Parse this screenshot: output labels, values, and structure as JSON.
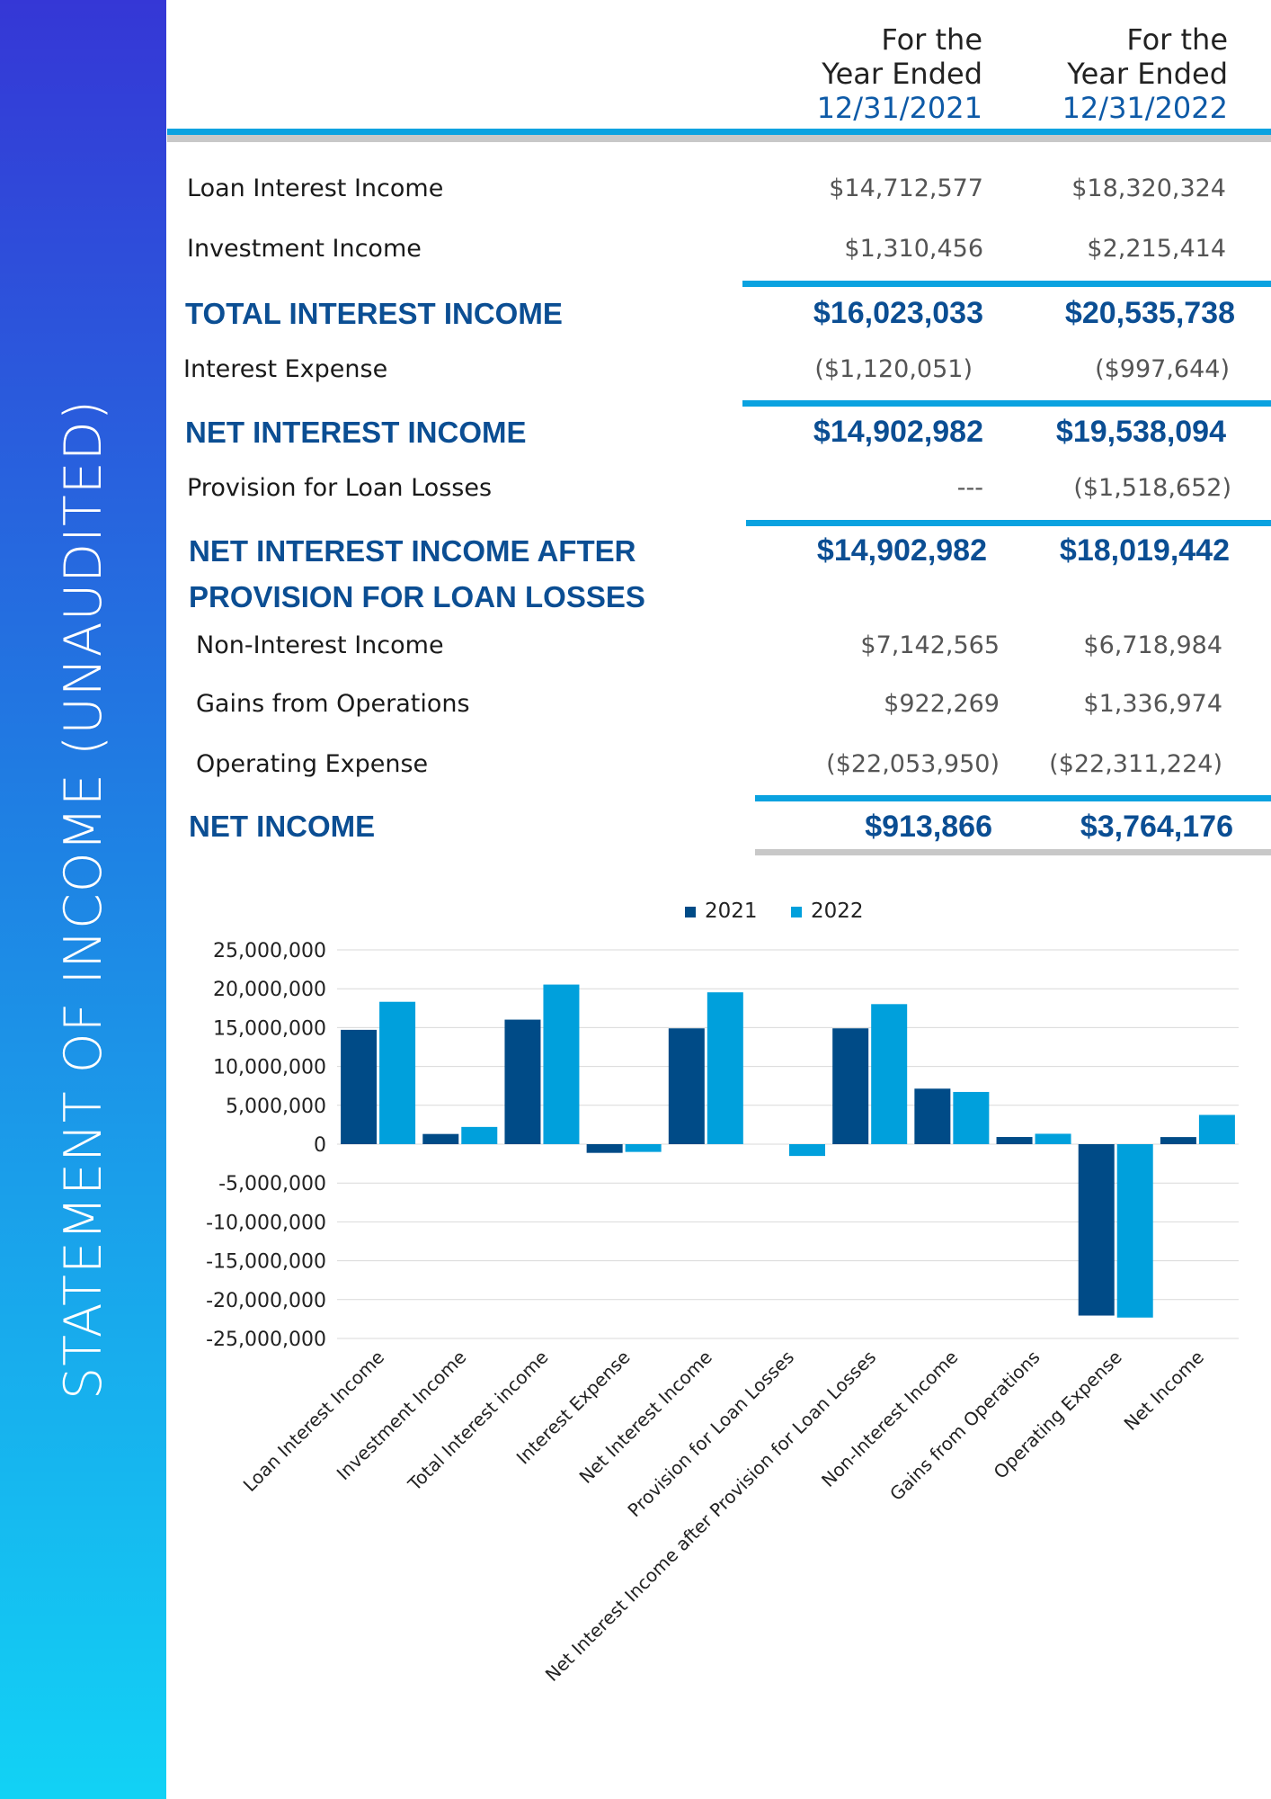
{
  "sidebar": {
    "title": "STATEMENT OF INCOME (UNAUDITED)"
  },
  "columns": [
    {
      "line1": "For the",
      "line2": "Year Ended",
      "date": "12/31/2021"
    },
    {
      "line1": "For the",
      "line2": "Year Ended",
      "date": "12/31/2022"
    }
  ],
  "rows": {
    "loan_interest_income": {
      "label": "Loan Interest Income",
      "v2021": "$14,712,577",
      "v2022": "$18,320,324"
    },
    "investment_income": {
      "label": "Investment Income",
      "v2021": "$1,310,456",
      "v2022": "$2,215,414"
    },
    "total_interest_income": {
      "label": "TOTAL INTEREST INCOME",
      "v2021": "$16,023,033",
      "v2022": "$20,535,738"
    },
    "interest_expense": {
      "label": "Interest Expense",
      "v2021": "($1,120,051)",
      "v2022": "($997,644)"
    },
    "net_interest_income": {
      "label": "NET INTEREST INCOME",
      "v2021": "$14,902,982",
      "v2022": "$19,538,094"
    },
    "provision": {
      "label": "Provision for Loan Losses",
      "v2021": "---",
      "v2022": "($1,518,652)"
    },
    "nii_after_provision": {
      "label_line1": "NET INTEREST INCOME AFTER",
      "label_line2": "PROVISION FOR LOAN LOSSES",
      "v2021": "$14,902,982",
      "v2022": "$18,019,442"
    },
    "non_interest_income": {
      "label": "Non-Interest Income",
      "v2021": "$7,142,565",
      "v2022": "$6,718,984"
    },
    "gains_from_operations": {
      "label": "Gains from Operations",
      "v2021": "$922,269",
      "v2022": "$1,336,974"
    },
    "operating_expense": {
      "label": "Operating Expense",
      "v2021": "($22,053,950)",
      "v2022": "($22,311,224)"
    },
    "net_income": {
      "label": "NET INCOME",
      "v2021": "$913,866",
      "v2022": "$3,764,176"
    }
  },
  "chart_data": {
    "type": "bar",
    "categories": [
      "Loan Interest Income",
      "Investment Income",
      "Total Interest income",
      "Interest Expense",
      "Net Interest Income",
      "Provision for Loan Losses",
      "Net Interest Income after Provision for Loan Losses",
      "Non-Interest Income",
      "Gains from Operations",
      "Operating Expense",
      "Net Income"
    ],
    "series": [
      {
        "name": "2021",
        "color": "#004b87",
        "values": [
          14712577,
          1310456,
          16023033,
          -1120051,
          14902982,
          0,
          14902982,
          7142565,
          922269,
          -22053950,
          913866
        ]
      },
      {
        "name": "2022",
        "color": "#00a0dc",
        "values": [
          18320324,
          2215414,
          20535738,
          -997644,
          19538094,
          -1518652,
          18019442,
          6718984,
          1336974,
          -22311224,
          3764176
        ]
      }
    ],
    "yticks": [
      "25,000,000",
      "20,000,000",
      "15,000,000",
      "10,000,000",
      "5,000,000",
      "0",
      "-5,000,000",
      "-10,000,000",
      "-15,000,000",
      "-20,000,000",
      "-25,000,000"
    ],
    "ylim": [
      -25000000,
      25000000
    ],
    "legend": "top-center",
    "grid": true
  }
}
